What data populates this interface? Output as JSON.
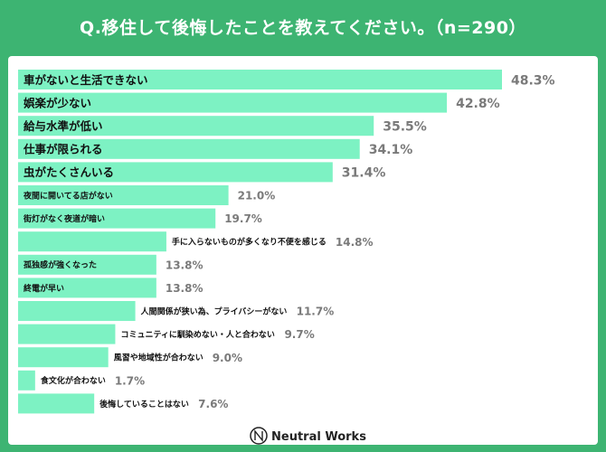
{
  "chart_data": {
    "type": "bar",
    "orientation": "horizontal",
    "title": "Q.移住して後悔したことを教えてください。（n=290）",
    "categories": [
      "車がないと生活できない",
      "娯楽が少ない",
      "給与水準が低い",
      "仕事が限られる",
      "虫がたくさんいる",
      "夜間に開いてる店がない",
      "街灯がなく夜道が暗い",
      "手に入らないものが多くなり不便を感じる",
      "孤独感が強くなった",
      "終電が早い",
      "人間関係が狭い為、プライバシーがない",
      "コミュニティに馴染めない・人と合わない",
      "風習や地域性が合わない",
      "食文化が合わない",
      "後悔していることはない"
    ],
    "values": [
      48.3,
      42.8,
      35.5,
      34.1,
      31.4,
      21.0,
      19.7,
      14.8,
      13.8,
      13.8,
      11.7,
      9.7,
      9.0,
      1.7,
      7.6
    ],
    "value_labels": [
      "48.3%",
      "42.8%",
      "35.5%",
      "34.1%",
      "31.4%",
      "21.0%",
      "19.7%",
      "14.8%",
      "13.8%",
      "13.8%",
      "11.7%",
      "9.7%",
      "9.0%",
      "1.7%",
      "7.6%"
    ],
    "unit": "%",
    "xlim": [
      0,
      48.3
    ],
    "grid": false,
    "legend": "none"
  },
  "footer": {
    "brand": "Neutral Works"
  },
  "colors": {
    "background": "#3db472",
    "bar": "#7df2c3",
    "value_text": "#7a7a7a"
  }
}
